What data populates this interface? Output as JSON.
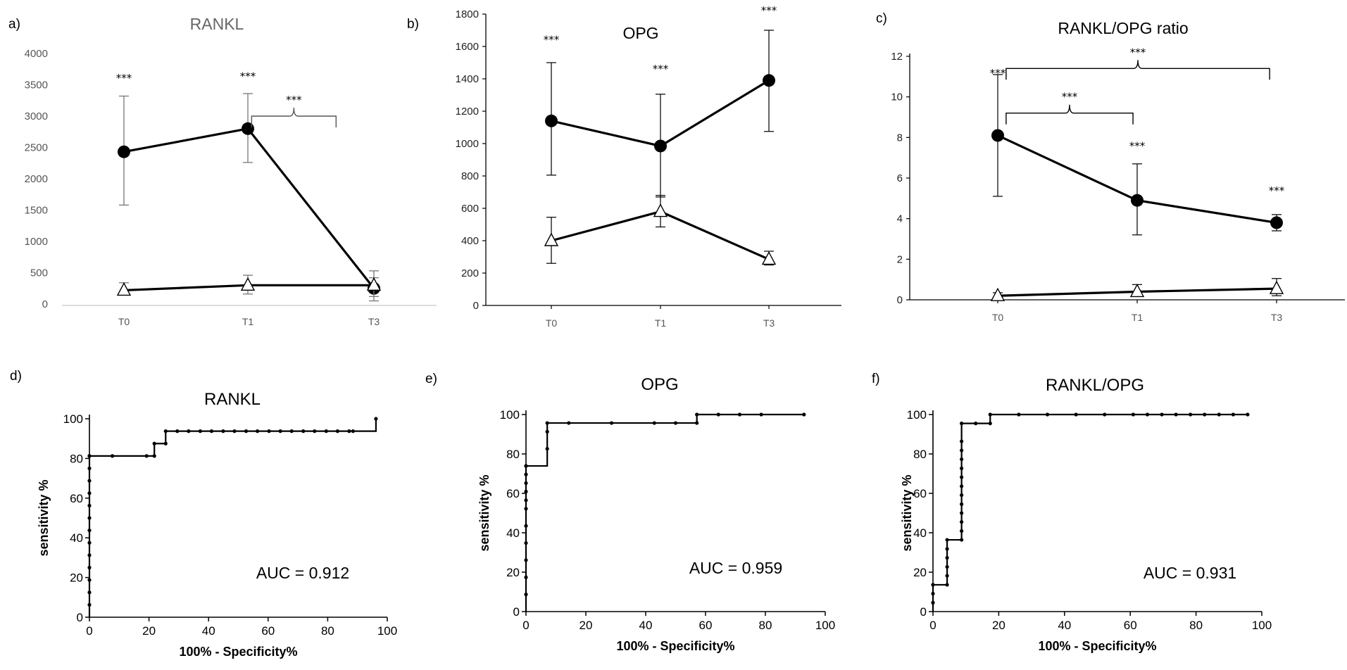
{
  "figure": {
    "panel_letters": [
      "a)",
      "b)",
      "c)",
      "d)",
      "e)",
      "f)"
    ]
  },
  "colors": {
    "ink": "#000000",
    "axis_top": "#666666",
    "tick_text": "#555555"
  },
  "chart_data": [
    {
      "id": "a",
      "type": "line",
      "title": "RANKL",
      "categories": [
        "T0",
        "T1",
        "T3"
      ],
      "ylim": [
        0,
        4000
      ],
      "yticks": [
        0,
        500,
        1000,
        1500,
        2000,
        2500,
        3000,
        3500,
        4000
      ],
      "series": [
        {
          "name": "circle-series",
          "marker": "circle",
          "values": [
            2430,
            2800,
            250
          ],
          "err_hi": [
            3320,
            3360,
            530
          ],
          "err_lo": [
            1580,
            2260,
            50
          ]
        },
        {
          "name": "triangle-series",
          "marker": "triangle",
          "values": [
            220,
            300,
            300
          ],
          "err_hi": [
            340,
            460,
            420
          ],
          "err_lo": [
            150,
            160,
            120
          ]
        }
      ],
      "annotations": [
        {
          "text": "***",
          "x": "T0",
          "y": 3550
        },
        {
          "text": "***",
          "x": "T1",
          "y": 3580
        }
      ],
      "brackets": [
        {
          "from": 1.03,
          "to": 1.7,
          "y": 3000,
          "text": "***"
        }
      ]
    },
    {
      "id": "b",
      "type": "line",
      "title": "OPG",
      "categories": [
        "T0",
        "T1",
        "T3"
      ],
      "ylim": [
        0,
        1800
      ],
      "yticks": [
        0,
        200,
        400,
        600,
        800,
        1000,
        1200,
        1400,
        1600,
        1800
      ],
      "series": [
        {
          "name": "circle-series",
          "marker": "circle",
          "values": [
            1140,
            985,
            1390
          ],
          "err_hi": [
            1500,
            1305,
            1700
          ],
          "err_lo": [
            805,
            670,
            1075
          ]
        },
        {
          "name": "triangle-series",
          "marker": "triangle",
          "values": [
            400,
            580,
            285
          ],
          "err_hi": [
            545,
            680,
            335
          ],
          "err_lo": [
            260,
            485,
            250
          ]
        }
      ],
      "annotations": [
        {
          "text": "***",
          "x": "T0",
          "y": 1620
        },
        {
          "text": "***",
          "x": "T1",
          "y": 1440
        },
        {
          "text": "***",
          "x": "T3",
          "y": 1800
        }
      ],
      "brackets": []
    },
    {
      "id": "c",
      "type": "line",
      "title": "RANKL/OPG ratio",
      "categories": [
        "T0",
        "T1",
        "T3"
      ],
      "ylim": [
        0,
        12
      ],
      "yticks": [
        0,
        2,
        4,
        6,
        8,
        10,
        12
      ],
      "series": [
        {
          "name": "circle-series",
          "marker": "circle",
          "values": [
            8.1,
            4.9,
            3.8
          ],
          "err_hi": [
            11.1,
            6.7,
            4.2
          ],
          "err_lo": [
            5.1,
            3.2,
            3.4
          ]
        },
        {
          "name": "triangle-series",
          "marker": "triangle",
          "values": [
            0.2,
            0.4,
            0.55
          ],
          "err_hi": [
            0.35,
            0.75,
            1.05
          ],
          "err_lo": [
            0.1,
            0.2,
            0.2
          ]
        }
      ],
      "annotations": [
        {
          "text": "***",
          "x": "T0",
          "y": 11.0
        },
        {
          "text": "***",
          "x": "T1",
          "y": 7.4
        },
        {
          "text": "***",
          "x": "T3",
          "y": 5.2
        }
      ],
      "brackets": [
        {
          "from": 0.06,
          "to": 0.97,
          "y": 9.2,
          "text": "***"
        },
        {
          "from": 0.06,
          "to": 1.95,
          "y": 11.4,
          "text": "***"
        }
      ]
    },
    {
      "id": "d",
      "type": "line",
      "title": "RANKL",
      "xlabel": "100% - Specificity%",
      "ylabel": "sensitivity %",
      "xlim": [
        0,
        100
      ],
      "ylim": [
        0,
        100
      ],
      "xticks": [
        0,
        20,
        40,
        60,
        80,
        100
      ],
      "yticks": [
        0,
        20,
        40,
        60,
        80,
        100
      ],
      "x": [
        0,
        0,
        0,
        0,
        0,
        0,
        0,
        0,
        0,
        0,
        0,
        0,
        0,
        0,
        7.7,
        19.2,
        21.8,
        21.8,
        25.6,
        25.6,
        29.5,
        33.3,
        37.2,
        41,
        44.9,
        48.7,
        52.6,
        56.4,
        60.3,
        64.1,
        67.9,
        71.8,
        75.6,
        79.5,
        83.3,
        87.2,
        88.5,
        96.2
      ],
      "y": [
        6.25,
        12.5,
        18.75,
        25,
        31.25,
        37.5,
        43.75,
        50,
        56.25,
        62.5,
        68.75,
        75,
        81.25,
        81.25,
        81.25,
        81.25,
        81.25,
        87.5,
        87.5,
        93.75,
        93.75,
        93.75,
        93.75,
        93.75,
        93.75,
        93.75,
        93.75,
        93.75,
        93.75,
        93.75,
        93.75,
        93.75,
        93.75,
        93.75,
        93.75,
        93.75,
        93.75,
        100
      ],
      "auc_label": "AUC = 0.912"
    },
    {
      "id": "e",
      "type": "line",
      "title": "OPG",
      "xlabel": "100% - Specificity%",
      "ylabel": "sensitivity %",
      "xlim": [
        0,
        100
      ],
      "ylim": [
        0,
        100
      ],
      "xticks": [
        0,
        20,
        40,
        60,
        80,
        100
      ],
      "yticks": [
        0,
        20,
        40,
        60,
        80,
        100
      ],
      "x": [
        0,
        0,
        0,
        0,
        0,
        0,
        0,
        0,
        0,
        0,
        0,
        0,
        7.1,
        7.1,
        7.1,
        14.3,
        28.6,
        42.9,
        50,
        57.1,
        57.1,
        64.3,
        71.4,
        78.6,
        92.9
      ],
      "y": [
        8.7,
        17.4,
        26.1,
        34.8,
        43.5,
        52.2,
        56.5,
        60.9,
        65.2,
        69.6,
        73.9,
        73.9,
        82.6,
        91.3,
        95.7,
        95.7,
        95.7,
        95.7,
        95.7,
        95.7,
        100,
        100,
        100,
        100,
        100
      ],
      "auc_label": "AUC = 0.959"
    },
    {
      "id": "f",
      "type": "line",
      "title": "RANKL/OPG",
      "xlabel": "100% - Specificity%",
      "ylabel": "sensitivity %",
      "xlim": [
        0,
        100
      ],
      "ylim": [
        0,
        100
      ],
      "xticks": [
        0,
        20,
        40,
        60,
        80,
        100
      ],
      "yticks": [
        0,
        20,
        40,
        60,
        80,
        100
      ],
      "x": [
        0,
        0,
        0,
        0,
        4.3,
        4.3,
        4.3,
        4.3,
        4.3,
        4.3,
        8.7,
        8.7,
        8.7,
        8.7,
        8.7,
        8.7,
        8.7,
        8.7,
        8.7,
        8.7,
        8.7,
        8.7,
        8.7,
        13,
        17.4,
        17.4,
        26.1,
        34.8,
        43.5,
        52.2,
        60.9,
        65.2,
        69.6,
        73.9,
        78.3,
        82.6,
        87,
        91.3,
        95.7
      ],
      "y": [
        4.5,
        9.1,
        13.6,
        13.6,
        13.6,
        18.2,
        22.7,
        27.3,
        31.8,
        36.4,
        36.4,
        40.9,
        45.5,
        50,
        54.5,
        59.1,
        63.6,
        68.2,
        72.7,
        77.3,
        81.8,
        86.4,
        95.5,
        95.5,
        95.5,
        100,
        100,
        100,
        100,
        100,
        100,
        100,
        100,
        100,
        100,
        100,
        100,
        100,
        100
      ],
      "auc_label": "AUC = 0.931"
    }
  ]
}
